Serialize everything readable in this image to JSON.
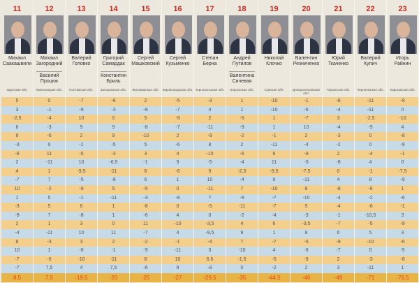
{
  "colors": {
    "orange_row": "#f3cf8b",
    "blue_row": "#c7dae7",
    "total_row": "#e9b446",
    "number": "#c8281e",
    "total_text": "#e0461c"
  },
  "candidates": [
    {
      "num": "11",
      "name": "Михаил Саакашвили",
      "name2": "",
      "region": "Одесская обл."
    },
    {
      "num": "12",
      "name": "Михаил Загородний",
      "name2": "Василий Процюк",
      "region": "Хмельницкая обл."
    },
    {
      "num": "13",
      "name": "Валерий Головко",
      "name2": "",
      "region": "Полтавская обл."
    },
    {
      "num": "14",
      "name": "Григорий Самардак",
      "name2": "Константин Бриль",
      "region": "Запорожская обл."
    },
    {
      "num": "15",
      "name": "Сергей Машковский",
      "name2": "",
      "region": "Житомирская обл."
    },
    {
      "num": "16",
      "name": "Сергей Кузьменко",
      "name2": "",
      "region": "Кировоградская обл."
    },
    {
      "num": "17",
      "name": "Степан Берна",
      "name2": "",
      "region": "Тернопольская обл."
    },
    {
      "num": "18",
      "name": "Андрей Путилов",
      "name2": "Валентина Сичевая",
      "region": "Херсонская обл."
    },
    {
      "num": "19",
      "name": "Николай Клочко",
      "name2": "",
      "region": "Сумская обл."
    },
    {
      "num": "20",
      "name": "Валентин Резниченко",
      "name2": "",
      "region": "Днепропетровская обл."
    },
    {
      "num": "21",
      "name": "Юрий Ткаченко",
      "name2": "",
      "region": "Черкасская обл."
    },
    {
      "num": "22",
      "name": "Валерий Кулич",
      "name2": "",
      "region": "Черниговская обл."
    },
    {
      "num": "23",
      "name": "Игорь Райнин",
      "name2": "",
      "region": "Харьковская обл."
    }
  ],
  "rows": [
    [
      "5",
      "0",
      "-7",
      "-6",
      "2",
      "-5",
      "-3",
      "1",
      "-10",
      "-1",
      "-8",
      "-11",
      "-9"
    ],
    [
      "3",
      "-1",
      "-9",
      "-3",
      "-8",
      "-7",
      "4",
      "1",
      "-10",
      "-6",
      "-4",
      "-11",
      "0"
    ],
    [
      "-2,5",
      "-4",
      "10",
      "0",
      "5",
      "-9",
      "2",
      "-5",
      "1",
      "-7",
      "3",
      "-2,5",
      "-10"
    ],
    [
      "6",
      "-3",
      "5",
      "9",
      "-8",
      "-7",
      "-11",
      "-9",
      "1",
      "10",
      "-4",
      "-5",
      "4"
    ],
    [
      "8",
      "-6",
      "2",
      "9",
      "-10",
      "2",
      "-9",
      "-2",
      "-1",
      "2",
      "-3",
      "0",
      "-8"
    ],
    [
      "-3",
      "9",
      "-1",
      "-5",
      "5",
      "-6",
      "8",
      "2",
      "-11",
      "-4",
      "-2",
      "0",
      "-9"
    ],
    [
      "-8",
      "11",
      "-5",
      "-3",
      "3",
      "4",
      "-10",
      "-6",
      "6",
      "-9",
      "2",
      "-4",
      "-1"
    ],
    [
      "2",
      "-11",
      "10",
      "-6,5",
      "-1",
      "9",
      "-5",
      "-4",
      "11",
      "-3",
      "-8",
      "4",
      "0"
    ],
    [
      "4",
      "1",
      "-9,5",
      "-11",
      "8",
      "-6",
      "9",
      "-2,5",
      "-9,5",
      "-7,5",
      "0",
      "-1",
      "-7,5"
    ],
    [
      "-7",
      "7",
      "-5",
      "-8",
      "6",
      "1",
      "10",
      "-4",
      "9",
      "-11",
      "4",
      "8",
      "-9"
    ],
    [
      "10",
      "-2",
      "-9",
      "5",
      "-5",
      "0",
      "-11",
      "7",
      "-10",
      "8",
      "-8",
      "-6",
      "1"
    ],
    [
      "1",
      "5",
      "-1",
      "-11",
      "-3",
      "-8",
      "7",
      "-9",
      "-7",
      "-10",
      "-4",
      "-2",
      "-6"
    ],
    [
      "-3",
      "5",
      "6",
      "1",
      "-8",
      "0",
      "-5",
      "-11",
      "-7",
      "9",
      "-4",
      "-6",
      "-1"
    ],
    [
      "-9",
      "7",
      "-8",
      "1",
      "-6",
      "4",
      "0",
      "-2",
      "-4",
      "-3",
      "-1",
      "-10,5",
      "3"
    ],
    [
      "2",
      "1",
      "3",
      "0",
      "11",
      "-10",
      "-3,5",
      "4",
      "6",
      "-3,5",
      "-7",
      "-5",
      "-9"
    ],
    [
      "-4",
      "-11",
      "10",
      "11",
      "-7",
      "4",
      "-9,5",
      "9",
      "1",
      "8",
      "6",
      "5",
      "3"
    ],
    [
      "8",
      "-3",
      "3",
      "2",
      "-2",
      "-1",
      "-4",
      "7",
      "-7",
      "-5",
      "-9",
      "-10",
      "-6"
    ],
    [
      "10",
      "1",
      "-8",
      "-1",
      "-9",
      "-11",
      "3",
      "-10",
      "4",
      "-6",
      "-7",
      "0",
      "-5"
    ],
    [
      "-7",
      "-6",
      "-10",
      "-11",
      "8",
      "10",
      "6,5",
      "-1,5",
      "-5",
      "-9",
      "2",
      "-3",
      "-8"
    ],
    [
      "-7",
      "7,5",
      "4",
      "7,5",
      "-6",
      "9",
      "-8",
      "0",
      "-2",
      "2",
      "3",
      "-11",
      "1"
    ]
  ],
  "totals": [
    "8,5",
    "7,5",
    "-19,5",
    "-20",
    "-25",
    "-27",
    "-29,5",
    "-35",
    "-44,5",
    "-46",
    "-49",
    "-71",
    "-76,5"
  ]
}
